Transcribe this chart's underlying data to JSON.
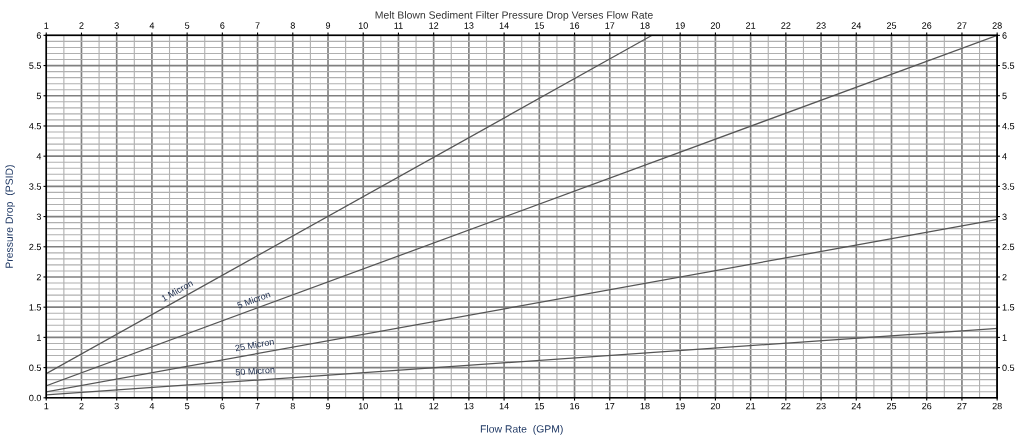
{
  "chart_data": {
    "type": "line",
    "title": "Melt Blown Sediment Filter Pressure Drop Verses Flow Rate",
    "xlabel": "Flow Rate  (GPM)",
    "ylabel": "Pressure Drop  (PSID)",
    "series": [
      {
        "name": "1 Micron",
        "color": "#555555",
        "x": [
          1,
          18.2
        ],
        "values": [
          0.4,
          6
        ]
      },
      {
        "name": "5 Micron",
        "color": "#555555",
        "x": [
          1,
          28
        ],
        "values": [
          0.2,
          6
        ]
      },
      {
        "name": "25 Micron",
        "color": "#555555",
        "x": [
          1,
          28
        ],
        "values": [
          0.1,
          2.95
        ]
      },
      {
        "name": "50 Micron",
        "color": "#555555",
        "x": [
          1,
          28
        ],
        "values": [
          0.05,
          1.15
        ]
      }
    ],
    "xlim": [
      1,
      28
    ],
    "xticks": [
      1,
      2,
      3,
      4,
      5,
      6,
      7,
      8,
      9,
      10,
      11,
      12,
      13,
      14,
      15,
      16,
      17,
      18,
      19,
      20,
      21,
      22,
      23,
      24,
      25,
      26,
      27,
      28
    ],
    "x2lim": [
      1,
      28
    ],
    "x2ticks": [
      1,
      2,
      3,
      4,
      5,
      6,
      7,
      8,
      9,
      10,
      11,
      12,
      13,
      14,
      15,
      16,
      17,
      18,
      19,
      20,
      21,
      22,
      23,
      24,
      25,
      26,
      27,
      28
    ],
    "ylim": [
      0,
      6
    ],
    "yticks": [
      {
        "value": 0,
        "label": "0.0"
      },
      0.5,
      1,
      1.5,
      2,
      2.5,
      3,
      3.5,
      4,
      4.5,
      5,
      5.5,
      6
    ],
    "y2lim": [
      0,
      6
    ],
    "y2ticks": [
      0.5,
      1,
      1.5,
      2,
      2.5,
      3,
      3.5,
      4,
      4.5,
      5,
      5.5,
      6
    ],
    "grid": true,
    "legend": false,
    "marker": "none",
    "line_style": "solid"
  }
}
